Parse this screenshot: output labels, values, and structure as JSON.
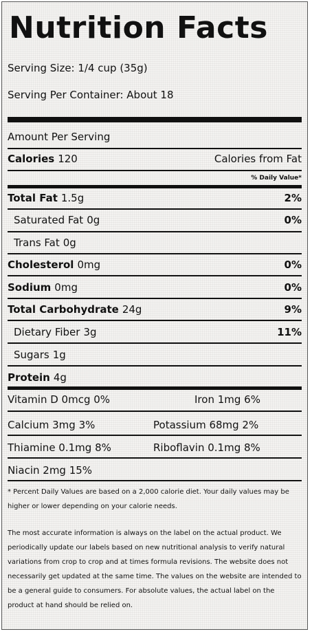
{
  "title": "Nutrition Facts",
  "serving_size": "Serving Size: 1/4 cup (35g)",
  "servings_per_container": "Serving Per Container: About 18",
  "amount_per_serving": "Amount Per Serving",
  "calories": {
    "label": "Calories",
    "value": "120",
    "from_fat_label": "Calories from Fat"
  },
  "daily_value_header": "% Daily Value*",
  "nutrients": {
    "total_fat": {
      "label": "Total Fat",
      "value": "1.5g",
      "dv": "2%"
    },
    "saturated_fat": {
      "label": "Saturated Fat",
      "value": "0g",
      "dv": "0%"
    },
    "trans_fat": {
      "label": "Trans Fat",
      "value": "0g"
    },
    "cholesterol": {
      "label": "Cholesterol",
      "value": "0mg",
      "dv": "0%"
    },
    "sodium": {
      "label": "Sodium",
      "value": "0mg",
      "dv": "0%"
    },
    "total_carbohydrate": {
      "label": "Total Carbohydrate",
      "value": "24g",
      "dv": "9%"
    },
    "dietary_fiber": {
      "label": "Dietary Fiber",
      "value": "3g",
      "dv": "11%"
    },
    "sugars": {
      "label": "Sugars",
      "value": "1g"
    },
    "protein": {
      "label": "Protein",
      "value": "4g"
    }
  },
  "vitamins": {
    "vitamin_d": "Vitamin D 0mcg 0%",
    "iron": "Iron 1mg 6%",
    "calcium": "Calcium 3mg 3%",
    "potassium": "Potassium 68mg 2%",
    "thiamine": "Thiamine 0.1mg 8%",
    "riboflavin": "Riboflavin 0.1mg 8%",
    "niacin": "Niacin 2mg 15%"
  },
  "footnote": "* Percent Daily Values are based on a 2,000 calorie diet. Your daily values may be higher or lower depending on your calorie needs.",
  "disclaimer": "The most accurate information is always on the label on the actual product. We periodically update our labels based on new nutritional analysis to verify natural variations from crop to crop and at times formula revisions. The website does not necessarily get updated at the same time. The values on the website are intended to be a general guide to consumers. For absolute values, the actual label on the product at hand should be relied on."
}
